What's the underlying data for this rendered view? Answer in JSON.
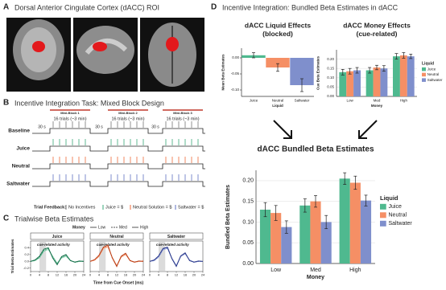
{
  "panels": {
    "a": {
      "letter": "A",
      "title": "Dorsal Anterior Cingulate Cortex (dACC) ROI"
    },
    "b": {
      "letter": "B",
      "title": "Incentive Integration Task: Mixed Block Design",
      "rows": [
        "Baseline",
        "Juice",
        "Neutral",
        "Saltwater"
      ],
      "mini_blocks": [
        "Mini-Block 1",
        "Mini-Block 2",
        "Mini-Block 3"
      ],
      "block_label": "16 trials (~3 min)",
      "rest_label": "30 s",
      "feedback_title": "Trial Feedback:",
      "feedback": [
        "No Incentives",
        "Juice = $",
        "Neutral Solution = $",
        "Saltwater = $"
      ]
    },
    "c": {
      "letter": "C",
      "title": "Trialwise Beta Estimates"
    },
    "d": {
      "letter": "D",
      "title": "Incentive Integration: Bundled Beta Estimates in dACC"
    }
  },
  "chart_data": [
    {
      "type": "bar",
      "title": [
        "dACC Liquid Effects",
        "(blocked)"
      ],
      "x_label": "Liquid",
      "y_label": "Mean Beta Estimates",
      "categories": [
        "Juice",
        "Neutral",
        "Saltwater"
      ],
      "values": [
        0.008,
        -0.03,
        -0.085
      ],
      "errors": [
        0.008,
        0.012,
        0.02
      ],
      "colors": [
        "#4fb98f",
        "#f58f65",
        "#7f8fcc"
      ],
      "ylim": [
        -0.12,
        0.03
      ],
      "yticks": [
        {
          "value": 0,
          "label": "0.00"
        },
        {
          "value": -0.05,
          "label": "-0.05"
        },
        {
          "value": -0.1,
          "label": "-0.10"
        }
      ],
      "grid": false
    },
    {
      "type": "bar",
      "title": [
        "dACC Money Effects",
        "(cue-related)"
      ],
      "x_label": "Money",
      "y_label": "Cue Beta Estimates",
      "categories": [
        "Low",
        "Med",
        "High"
      ],
      "legend_title": "Liquid",
      "series": [
        {
          "name": "Juice",
          "color": "#4fb98f",
          "values": [
            0.13,
            0.14,
            0.215
          ],
          "errors": [
            0.015,
            0.015,
            0.015
          ]
        },
        {
          "name": "Neutral",
          "color": "#f58f65",
          "values": [
            0.135,
            0.155,
            0.22
          ],
          "errors": [
            0.015,
            0.012,
            0.015
          ]
        },
        {
          "name": "Saltwater",
          "color": "#7f8fcc",
          "values": [
            0.14,
            0.15,
            0.215
          ],
          "errors": [
            0.015,
            0.015,
            0.012
          ]
        }
      ],
      "ylim": [
        0,
        0.25
      ],
      "yticks": [
        {
          "value": 0,
          "label": "0.00"
        },
        {
          "value": 0.05,
          "label": "0.05"
        },
        {
          "value": 0.1,
          "label": "0.10"
        },
        {
          "value": 0.15,
          "label": "0.15"
        },
        {
          "value": 0.2,
          "label": "0.20"
        }
      ],
      "grid": true
    },
    {
      "type": "bar",
      "title": [
        "dACC Bundled Beta Estimates"
      ],
      "x_label": "Money",
      "y_label": "Bundled Beta Estimates",
      "categories": [
        "Low",
        "Med",
        "High"
      ],
      "legend_title": "Liquid",
      "series": [
        {
          "name": "Juice",
          "color": "#4fb98f",
          "values": [
            0.13,
            0.14,
            0.205
          ],
          "errors": [
            0.017,
            0.016,
            0.014
          ]
        },
        {
          "name": "Neutral",
          "color": "#f58f65",
          "values": [
            0.122,
            0.15,
            0.195
          ],
          "errors": [
            0.018,
            0.014,
            0.016
          ]
        },
        {
          "name": "Saltwater",
          "color": "#7f8fcc",
          "values": [
            0.088,
            0.1,
            0.152
          ],
          "errors": [
            0.015,
            0.016,
            0.013
          ]
        }
      ],
      "ylim": [
        0,
        0.225
      ],
      "yticks": [
        {
          "value": 0,
          "label": "0.00"
        },
        {
          "value": 0.05,
          "label": "0.05"
        },
        {
          "value": 0.1,
          "label": "0.10"
        },
        {
          "value": 0.15,
          "label": "0.15"
        },
        {
          "value": 0.2,
          "label": "0.20"
        }
      ],
      "grid": true
    },
    {
      "type": "line",
      "x_label": "Time from Cue Onset (ms)",
      "y_label": "Trial Beta Estimates",
      "legend_title": "Money",
      "annotation": "cue-related activity",
      "highlight_x": [
        4,
        7
      ],
      "x": [
        0,
        2,
        4,
        6,
        8,
        10,
        12,
        14,
        16,
        18,
        20,
        22,
        24
      ],
      "xlim": [
        0,
        24
      ],
      "xticks": [
        0,
        4,
        8,
        12,
        16,
        20,
        24
      ],
      "ylim": [
        -0.3,
        0.6
      ],
      "yticks": [
        -0.2,
        {
          "value": 0,
          "label": "0.0"
        },
        0.2,
        0.4
      ],
      "facets": [
        {
          "name": "Juice",
          "series": [
            {
              "name": "Low",
              "color": "#8fd4b3",
              "dash": false,
              "values": [
                0,
                0.02,
                0.1,
                0.3,
                0.35,
                0.15,
                -0.05,
                0.1,
                0.15,
                0.02,
                -0.02,
                0,
                0.01
              ]
            },
            {
              "name": "Med",
              "color": "#3aa878",
              "dash": true,
              "values": [
                0,
                0.03,
                0.12,
                0.32,
                0.38,
                0.12,
                -0.08,
                0.12,
                0.18,
                0.03,
                -0.03,
                0,
                0
              ]
            },
            {
              "name": "High",
              "color": "#1b6e4c",
              "dash": false,
              "values": [
                0,
                0.04,
                0.15,
                0.36,
                0.4,
                0.1,
                -0.1,
                0.14,
                0.2,
                0.02,
                -0.02,
                0.01,
                0
              ]
            }
          ]
        },
        {
          "name": "Neutral",
          "series": [
            {
              "name": "Low",
              "color": "#f7b89a",
              "dash": false,
              "values": [
                0,
                0.03,
                0.14,
                0.38,
                0.42,
                0.12,
                -0.12,
                0.12,
                0.2,
                0.02,
                -0.03,
                0,
                0
              ]
            },
            {
              "name": "Med",
              "color": "#ef6a3a",
              "dash": true,
              "values": [
                0,
                0.04,
                0.16,
                0.4,
                0.45,
                0.1,
                -0.14,
                0.14,
                0.22,
                0.03,
                -0.02,
                0,
                0.01
              ]
            },
            {
              "name": "High",
              "color": "#b8401a",
              "dash": false,
              "values": [
                0,
                0.05,
                0.18,
                0.42,
                0.48,
                0.1,
                -0.15,
                0.15,
                0.24,
                0.02,
                -0.02,
                0.01,
                0
              ]
            }
          ]
        },
        {
          "name": "Saltwater",
          "series": [
            {
              "name": "Low",
              "color": "#a9b4e0",
              "dash": false,
              "values": [
                0,
                0.02,
                0.12,
                0.34,
                0.38,
                0.1,
                -0.12,
                0.14,
                0.22,
                0.04,
                -0.02,
                0,
                0
              ]
            },
            {
              "name": "Med",
              "color": "#5f71c2",
              "dash": true,
              "values": [
                0,
                0.03,
                0.14,
                0.36,
                0.4,
                0.08,
                -0.14,
                0.16,
                0.24,
                0.03,
                -0.03,
                0,
                0
              ]
            },
            {
              "name": "High",
              "color": "#2c3a8a",
              "dash": false,
              "values": [
                0,
                0.04,
                0.16,
                0.38,
                0.42,
                0.08,
                -0.15,
                0.16,
                0.25,
                0.02,
                -0.02,
                0.01,
                0
              ]
            }
          ]
        }
      ]
    }
  ]
}
